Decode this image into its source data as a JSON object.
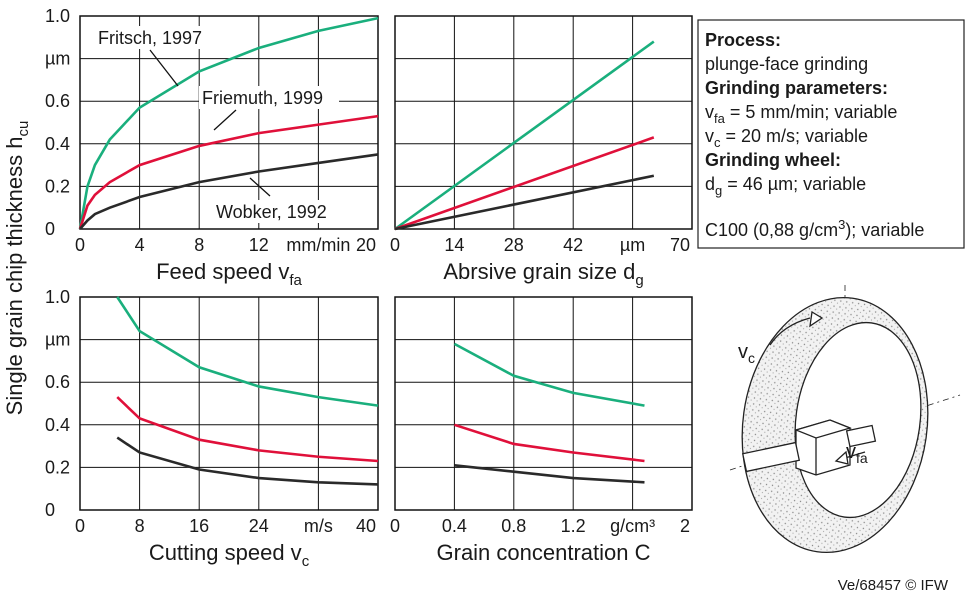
{
  "y_label": "Single grain chip thickness h",
  "y_label_sub": "cu",
  "chart_data": [
    {
      "type": "line",
      "x_label": "Feed speed v",
      "x_label_sub": "fa",
      "xlim": [
        0,
        20
      ],
      "xticks": [
        0,
        4,
        8,
        12,
        {
          "value": 16,
          "label": "mm/min"
        },
        20
      ],
      "ylim": [
        0,
        1
      ],
      "yticks": [
        0,
        0.2,
        0.4,
        0.6,
        {
          "value": 0.8,
          "label": "µm"
        },
        {
          "value": 1,
          "label": "1.0"
        }
      ],
      "ytick_labels": true,
      "grid": true,
      "x": [
        0,
        0.5,
        1,
        2,
        4,
        8,
        12,
        16,
        20
      ],
      "series": [
        {
          "name": "Fritsch, 1997",
          "color": "#1aaf7d",
          "values": [
            0,
            0.2,
            0.3,
            0.42,
            0.57,
            0.74,
            0.85,
            0.93,
            0.99
          ]
        },
        {
          "name": "Friemuth, 1999",
          "color": "#e0103a",
          "values": [
            0,
            0.11,
            0.16,
            0.22,
            0.3,
            0.39,
            0.45,
            0.49,
            0.53
          ]
        },
        {
          "name": "Wobker, 1992",
          "color": "#2a2a2a",
          "values": [
            0,
            0.04,
            0.07,
            0.1,
            0.15,
            0.22,
            0.27,
            0.31,
            0.35
          ]
        }
      ]
    },
    {
      "type": "line",
      "x_label": "Abrsive grain size d",
      "x_label_sub": "g",
      "xlim": [
        0,
        70
      ],
      "xticks": [
        0,
        14,
        28,
        42,
        {
          "value": 56,
          "label": "µm"
        },
        70
      ],
      "ylim": [
        0,
        1
      ],
      "yticks": [
        0,
        0.2,
        0.4,
        0.6,
        0.8,
        1
      ],
      "ytick_labels": false,
      "grid": true,
      "x": [
        0,
        61
      ],
      "series": [
        {
          "color": "#1aaf7d",
          "values": [
            0,
            0.88
          ]
        },
        {
          "color": "#e0103a",
          "values": [
            0,
            0.43
          ]
        },
        {
          "color": "#2a2a2a",
          "values": [
            0,
            0.25
          ]
        }
      ]
    },
    {
      "type": "line",
      "x_label": "Cutting speed v",
      "x_label_sub": "c",
      "xlim": [
        0,
        40
      ],
      "xticks": [
        0,
        8,
        16,
        24,
        {
          "value": 32,
          "label": "m/s"
        },
        40
      ],
      "ylim": [
        0,
        1
      ],
      "yticks": [
        0,
        0.2,
        0.4,
        0.6,
        {
          "value": 0.8,
          "label": "µm"
        },
        {
          "value": 1,
          "label": "1.0"
        }
      ],
      "ytick_labels": true,
      "grid": true,
      "x": [
        5,
        8,
        16,
        24,
        32,
        40
      ],
      "series": [
        {
          "color": "#1aaf7d",
          "values": [
            1.0,
            0.84,
            0.67,
            0.58,
            0.53,
            0.49
          ]
        },
        {
          "color": "#e0103a",
          "values": [
            0.53,
            0.43,
            0.33,
            0.28,
            0.25,
            0.23
          ]
        },
        {
          "color": "#2a2a2a",
          "values": [
            0.34,
            0.27,
            0.19,
            0.15,
            0.13,
            0.12
          ]
        }
      ]
    },
    {
      "type": "line",
      "x_label": "Grain concentration C",
      "xlim": [
        0,
        2
      ],
      "xticks": [
        0,
        0.4,
        0.8,
        1.2,
        {
          "value": 1.6,
          "label": "g/cm³"
        },
        2
      ],
      "ylim": [
        0,
        1
      ],
      "yticks": [
        0,
        0.2,
        0.4,
        0.6,
        0.8,
        1
      ],
      "ytick_labels": false,
      "grid": true,
      "x": [
        0.4,
        0.8,
        1.2,
        1.68
      ],
      "series": [
        {
          "color": "#1aaf7d",
          "values": [
            0.78,
            0.63,
            0.55,
            0.49
          ]
        },
        {
          "color": "#e0103a",
          "values": [
            0.4,
            0.31,
            0.27,
            0.23
          ]
        },
        {
          "color": "#2a2a2a",
          "values": [
            0.21,
            0.18,
            0.15,
            0.13
          ]
        }
      ]
    }
  ],
  "info_box": {
    "lines": [
      [
        "Process:"
      ],
      [
        "plunge-face grinding"
      ],
      [
        "Grinding parameters:"
      ],
      [
        "v",
        "fa",
        " = 5 mm/min; variable"
      ],
      [
        "v",
        "c",
        " = 20 m/s; variable"
      ],
      [
        "Grinding wheel:"
      ],
      [
        "d",
        "g",
        " = 46 µm; variable"
      ],
      [
        "C100 (0,88 g/cm",
        "3",
        "); variable"
      ]
    ]
  },
  "diagram": {
    "vc": [
      "v",
      "c"
    ],
    "vfa": [
      "v",
      "fa"
    ]
  },
  "footer": "Ve/68457 © IFW"
}
